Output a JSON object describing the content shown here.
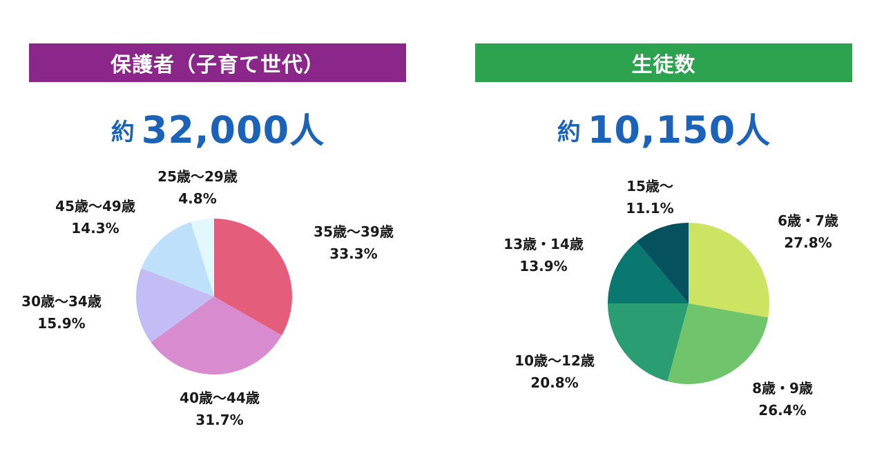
{
  "chart_data": [
    {
      "type": "pie",
      "title": "保護者（子育て世代）",
      "title_bg": "#8b278a",
      "total": {
        "prefix": "約",
        "value": "32,000",
        "unit": "人"
      },
      "slices": [
        {
          "label": "35歳〜39歳",
          "pct_label": "33.3%",
          "value": 33.3,
          "color": "#e45e7b"
        },
        {
          "label": "40歳〜44歳",
          "pct_label": "31.7%",
          "value": 31.7,
          "color": "#d98bd0"
        },
        {
          "label": "30歳〜34歳",
          "pct_label": "15.9%",
          "value": 15.9,
          "color": "#c4bcf5"
        },
        {
          "label": "45歳〜49歳",
          "pct_label": "14.3%",
          "value": 14.3,
          "color": "#bfe0fb"
        },
        {
          "label": "25歳〜29歳",
          "pct_label": "4.8%",
          "value": 4.8,
          "color": "#e2f8fc"
        }
      ]
    },
    {
      "type": "pie",
      "title": "生徒数",
      "title_bg": "#2ea34f",
      "total": {
        "prefix": "約",
        "value": "10,150",
        "unit": "人"
      },
      "slices": [
        {
          "label": "6歳・7歳",
          "pct_label": "27.8%",
          "value": 27.8,
          "color": "#cde362"
        },
        {
          "label": "8歳・9歳",
          "pct_label": "26.4%",
          "value": 26.4,
          "color": "#70c46c"
        },
        {
          "label": "10歳〜12歳",
          "pct_label": "20.8%",
          "value": 20.8,
          "color": "#2a9d72"
        },
        {
          "label": "13歳・14歳",
          "pct_label": "13.9%",
          "value": 13.9,
          "color": "#0a7870"
        },
        {
          "label": "15歳〜",
          "pct_label": "11.1%",
          "value": 11.1,
          "color": "#05525e"
        }
      ]
    }
  ]
}
